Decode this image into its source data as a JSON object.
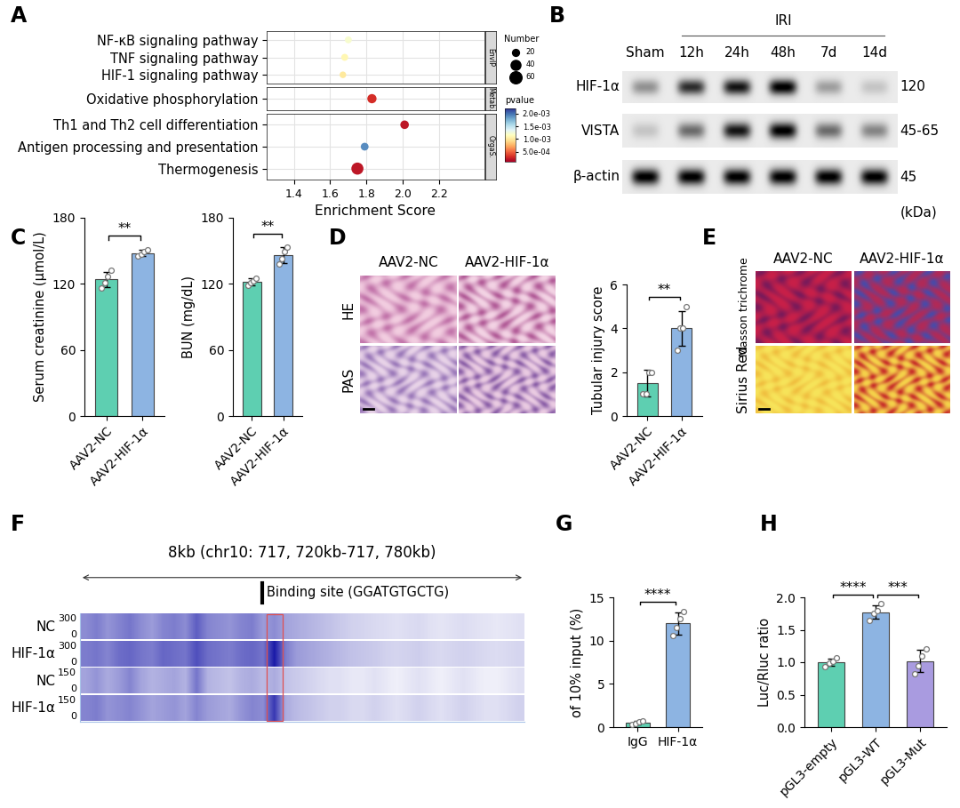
{
  "panel_labels": [
    "A",
    "B",
    "C",
    "D",
    "E",
    "F",
    "G",
    "H"
  ],
  "chart_data": [
    {
      "type": "dot",
      "xlabel": "Enrichment Score",
      "xlim": [
        1.25,
        2.45
      ],
      "xticks": [
        1.4,
        1.6,
        1.8,
        2.0,
        2.2
      ],
      "grid": true,
      "facets": [
        {
          "strip": "EnvIP",
          "terms": [
            "NF-κB signaling pathway",
            "TNF signaling pathway",
            "HIF-1 signaling pathway"
          ],
          "scores": [
            1.7,
            1.68,
            1.67
          ],
          "numbers": [
            20,
            20,
            18
          ],
          "pvalues": [
            0.0012,
            0.0011,
            0.001
          ]
        },
        {
          "strip": "Metab.",
          "terms": [
            "Oxidative phosphorylation"
          ],
          "scores": [
            1.83
          ],
          "numbers": [
            35
          ],
          "pvalues": [
            0.0003
          ]
        },
        {
          "strip": "OrgaS.",
          "terms": [
            "Th1 and Th2 cell differentiation",
            "Antigen processing and presentation",
            "Thermogenesis"
          ],
          "scores": [
            2.01,
            1.79,
            1.75
          ],
          "numbers": [
            30,
            25,
            60
          ],
          "pvalues": [
            0.0002,
            0.0019,
            0.0002
          ]
        }
      ],
      "size_legend": {
        "title": "Number",
        "values": [
          20,
          40,
          60
        ]
      },
      "colorbar": {
        "label": "pvalue",
        "range": [
          0.0001,
          0.0022
        ],
        "ticks": [
          {
            "value": 0.0005,
            "label": "5.0e-04"
          },
          {
            "value": 0.001,
            "label": "1.0e-03"
          },
          {
            "value": 0.0015,
            "label": "1.5e-03"
          },
          {
            "value": 0.002,
            "label": "2.0e-03"
          }
        ]
      }
    },
    {
      "type": "blot",
      "group_label": "IRI",
      "group_span": [
        1,
        5
      ],
      "lanes": [
        "Sham",
        "12h",
        "24h",
        "48h",
        "7d",
        "14d"
      ],
      "rows": [
        {
          "name": "HIF-1α",
          "mw": "120",
          "band_intensity": [
            0.35,
            0.75,
            0.85,
            0.95,
            0.3,
            0.15
          ]
        },
        {
          "name": "VISTA",
          "mw": "45-65",
          "band_intensity": [
            0.15,
            0.5,
            0.85,
            0.95,
            0.5,
            0.4
          ]
        },
        {
          "name": "β-actin",
          "mw": "45",
          "band_intensity": [
            0.95,
            0.95,
            0.95,
            0.95,
            0.95,
            0.95
          ]
        }
      ],
      "unit": "(kDa)"
    },
    {
      "type": "bar",
      "ylabel": "Serum creatinine (μmol/L)",
      "categories": [
        "AAV2-NC",
        "AAV2-HIF-1α"
      ],
      "values": [
        124,
        148
      ],
      "errors": [
        7,
        3
      ],
      "points": [
        [
          116,
          121,
          127,
          132
        ],
        [
          145,
          147,
          149,
          151
        ]
      ],
      "colors": [
        "#5ecfb1",
        "#8db4e2"
      ],
      "ylim": [
        0,
        180
      ],
      "yticks": [
        0,
        60,
        120,
        180
      ],
      "significance": [
        {
          "pair": [
            0,
            1
          ],
          "label": "**"
        }
      ]
    },
    {
      "type": "bar",
      "ylabel": "BUN (mg/dL)",
      "categories": [
        "AAV2-NC",
        "AAV2-HIF-1α"
      ],
      "values": [
        122,
        146
      ],
      "errors": [
        3,
        7
      ],
      "points": [
        [
          119,
          121,
          123,
          125
        ],
        [
          138,
          143,
          149,
          153
        ]
      ],
      "colors": [
        "#5ecfb1",
        "#8db4e2"
      ],
      "ylim": [
        0,
        180
      ],
      "yticks": [
        0,
        60,
        120,
        180
      ],
      "significance": [
        {
          "pair": [
            0,
            1
          ],
          "label": "**"
        }
      ]
    },
    {
      "type": "images",
      "columns": [
        "AAV2-NC",
        "AAV2-HIF-1α"
      ],
      "rows": [
        "HE",
        "PAS"
      ]
    },
    {
      "type": "bar",
      "ylabel": "Tubular injury score",
      "categories": [
        "AAV2-NC",
        "AAV2-HIF-1α"
      ],
      "values": [
        1.5,
        4.0
      ],
      "errors": [
        0.6,
        0.8
      ],
      "points": [
        [
          1,
          1,
          2,
          2
        ],
        [
          3,
          4,
          4,
          5
        ]
      ],
      "colors": [
        "#5ecfb1",
        "#8db4e2"
      ],
      "ylim": [
        0,
        6
      ],
      "yticks": [
        0,
        2,
        4,
        6
      ],
      "significance": [
        {
          "pair": [
            0,
            1
          ],
          "label": "**"
        }
      ]
    },
    {
      "type": "images",
      "columns": [
        "AAV2-NC",
        "AAV2-HIF-1α"
      ],
      "rows": [
        "Masson trichrome",
        "Sirius Red"
      ]
    },
    {
      "type": "track",
      "title": "8kb (chr10: 717, 720kb-717, 780kb)",
      "annotation": "Binding site (GGATGTGCTG)",
      "binding_site_bin": 17,
      "tracks": [
        {
          "name": "NC",
          "range": [
            0,
            300
          ],
          "values": [
            150,
            170,
            140,
            160,
            180,
            150,
            130,
            160,
            170,
            150,
            210,
            160,
            150,
            140,
            160,
            170,
            130,
            150,
            120,
            110,
            100,
            90,
            80,
            70,
            60,
            55,
            50,
            45,
            40,
            45,
            50,
            40,
            35,
            40,
            45,
            40,
            35,
            30,
            35,
            40
          ]
        },
        {
          "name": "HIF-1α",
          "range": [
            0,
            300
          ],
          "values": [
            170,
            180,
            160,
            190,
            200,
            180,
            170,
            200,
            190,
            180,
            230,
            190,
            180,
            170,
            190,
            200,
            180,
            300,
            170,
            130,
            120,
            110,
            100,
            90,
            80,
            75,
            70,
            60,
            55,
            60,
            65,
            55,
            50,
            55,
            60,
            55,
            50,
            45,
            50,
            55
          ]
        },
        {
          "name": "NC",
          "range": [
            0,
            150
          ],
          "values": [
            60,
            70,
            55,
            65,
            80,
            60,
            50,
            55,
            60,
            50,
            90,
            50,
            45,
            40,
            50,
            55,
            45,
            55,
            40,
            35,
            30,
            25,
            20,
            20,
            15,
            15,
            20,
            15,
            10,
            15,
            20,
            15,
            10,
            15,
            20,
            15,
            10,
            10,
            15,
            20
          ]
        },
        {
          "name": "HIF-1α",
          "range": [
            0,
            150
          ],
          "values": [
            80,
            85,
            70,
            75,
            80,
            70,
            60,
            65,
            70,
            60,
            80,
            65,
            60,
            55,
            70,
            80,
            75,
            130,
            55,
            45,
            40,
            35,
            30,
            30,
            25,
            25,
            30,
            25,
            20,
            25,
            30,
            25,
            20,
            25,
            30,
            25,
            20,
            20,
            25,
            30
          ]
        }
      ]
    },
    {
      "type": "bar",
      "ylabel": "of 10% input (%)",
      "categories": [
        "IgG",
        "HIF-1α"
      ],
      "values": [
        0.5,
        12.0
      ],
      "errors": [
        0.2,
        1.3
      ],
      "points": [
        [
          0.3,
          0.4,
          0.6,
          0.7
        ],
        [
          10.6,
          11.5,
          12.5,
          13.4
        ]
      ],
      "colors": [
        "#5ecfb1",
        "#8db4e2"
      ],
      "ylim": [
        0,
        15
      ],
      "yticks": [
        0,
        5,
        10,
        15
      ],
      "significance": [
        {
          "pair": [
            0,
            1
          ],
          "label": "****"
        }
      ]
    },
    {
      "type": "bar",
      "ylabel": "Luc/Rluc ratio",
      "categories": [
        "pGL3-empty",
        "pGL3-WT",
        "pGL3-Mut"
      ],
      "values": [
        1.0,
        1.77,
        1.02
      ],
      "errors": [
        0.06,
        0.1,
        0.17
      ],
      "points": [
        [
          0.93,
          0.98,
          1.02,
          1.07
        ],
        [
          1.65,
          1.75,
          1.8,
          1.9
        ],
        [
          0.82,
          0.95,
          1.1,
          1.2
        ]
      ],
      "colors": [
        "#5ecfb1",
        "#8db4e2",
        "#a99be0"
      ],
      "ylim": [
        0.0,
        2.0
      ],
      "yticks": [
        0.0,
        0.5,
        1.0,
        1.5,
        2.0
      ],
      "significance": [
        {
          "pair": [
            0,
            1
          ],
          "label": "****"
        },
        {
          "pair": [
            1,
            2
          ],
          "label": "***"
        }
      ]
    }
  ]
}
